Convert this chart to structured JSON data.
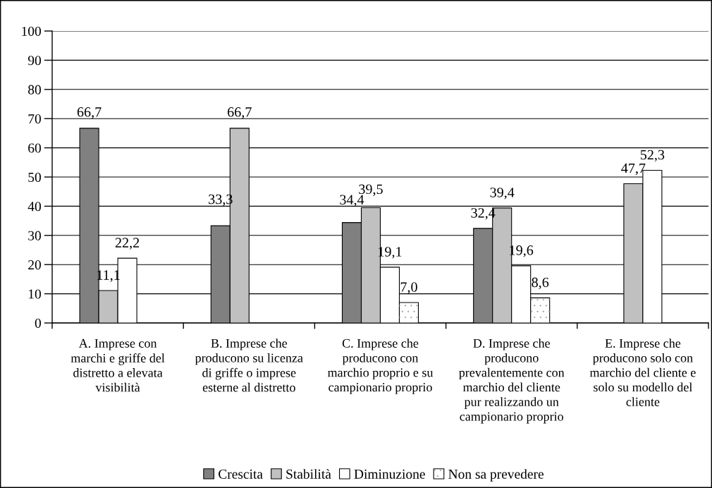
{
  "chart_data": {
    "type": "bar",
    "categories": [
      "A. Imprese con\nmarchi e griffe del\ndistretto a elevata\nvisibilità",
      "B. Imprese che\nproducono su licenza\ndi griffe o imprese\nesterne al distretto",
      "C. Imprese che\nproducono con\nmarchio proprio e su\ncampionario proprio",
      "D. Imprese che\nproducono\nprevalentemente con\nmarchio del cliente\npur realizzando un\ncampionario proprio",
      "E. Imprese che\nproducono solo con\nmarchio del cliente e\nsolo su modello del\ncliente"
    ],
    "series": [
      {
        "name": "Crescita",
        "color": "#808080",
        "values": [
          66.7,
          33.3,
          34.4,
          32.4,
          null
        ],
        "value_labels": [
          "66,7",
          "33,3",
          "34,4",
          "32,4",
          null
        ]
      },
      {
        "name": "Stabilità",
        "color": "#c0c0c0",
        "values": [
          11.1,
          66.7,
          39.5,
          39.4,
          47.7
        ],
        "value_labels": [
          "11,1",
          "66,7",
          "39,5",
          "39,4",
          "47,7"
        ]
      },
      {
        "name": "Diminuzione",
        "color": "#ffffff",
        "values": [
          22.2,
          null,
          19.1,
          19.6,
          52.3
        ],
        "value_labels": [
          "22,2",
          null,
          "19,1",
          "19,6",
          "52,3"
        ]
      },
      {
        "name": "Non sa prevedere",
        "color": "#ffffff",
        "values": [
          null,
          null,
          7.0,
          8.6,
          null
        ],
        "value_labels": [
          null,
          null,
          "7,0",
          "8,6",
          null
        ]
      }
    ],
    "ylim": [
      0,
      100
    ],
    "yticks": [
      0,
      10,
      20,
      30,
      40,
      50,
      60,
      70,
      80,
      90,
      100
    ],
    "grid": "y",
    "legend": "bottom"
  }
}
